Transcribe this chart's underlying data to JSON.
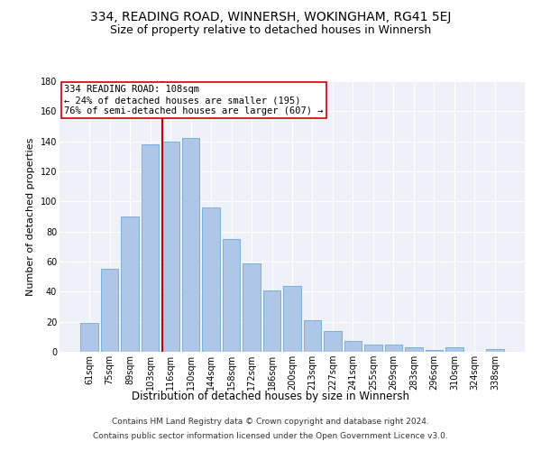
{
  "title": "334, READING ROAD, WINNERSH, WOKINGHAM, RG41 5EJ",
  "subtitle": "Size of property relative to detached houses in Winnersh",
  "xlabel": "Distribution of detached houses by size in Winnersh",
  "ylabel": "Number of detached properties",
  "categories": [
    "61sqm",
    "75sqm",
    "89sqm",
    "103sqm",
    "116sqm",
    "130sqm",
    "144sqm",
    "158sqm",
    "172sqm",
    "186sqm",
    "200sqm",
    "213sqm",
    "227sqm",
    "241sqm",
    "255sqm",
    "269sqm",
    "283sqm",
    "296sqm",
    "310sqm",
    "324sqm",
    "338sqm"
  ],
  "values": [
    19,
    55,
    90,
    138,
    140,
    142,
    96,
    75,
    59,
    41,
    44,
    21,
    14,
    7,
    5,
    5,
    3,
    1,
    3,
    0,
    2
  ],
  "bar_color": "#aec6e8",
  "bar_edge_color": "#6aaad4",
  "vline_x": 3.58,
  "vline_color": "#cc0000",
  "annotation_line1": "334 READING ROAD: 108sqm",
  "annotation_line2": "← 24% of detached houses are smaller (195)",
  "annotation_line3": "76% of semi-detached houses are larger (607) →",
  "annotation_box_color": "#ffffff",
  "annotation_box_edge": "#cc0000",
  "ylim": [
    0,
    180
  ],
  "yticks": [
    0,
    20,
    40,
    60,
    80,
    100,
    120,
    140,
    160,
    180
  ],
  "background_color": "#eef2f8",
  "footer_line1": "Contains HM Land Registry data © Crown copyright and database right 2024.",
  "footer_line2": "Contains public sector information licensed under the Open Government Licence v3.0.",
  "title_fontsize": 10,
  "subtitle_fontsize": 9,
  "xlabel_fontsize": 8.5,
  "ylabel_fontsize": 8,
  "tick_fontsize": 7,
  "footer_fontsize": 6.5,
  "annotation_fontsize": 7.5
}
